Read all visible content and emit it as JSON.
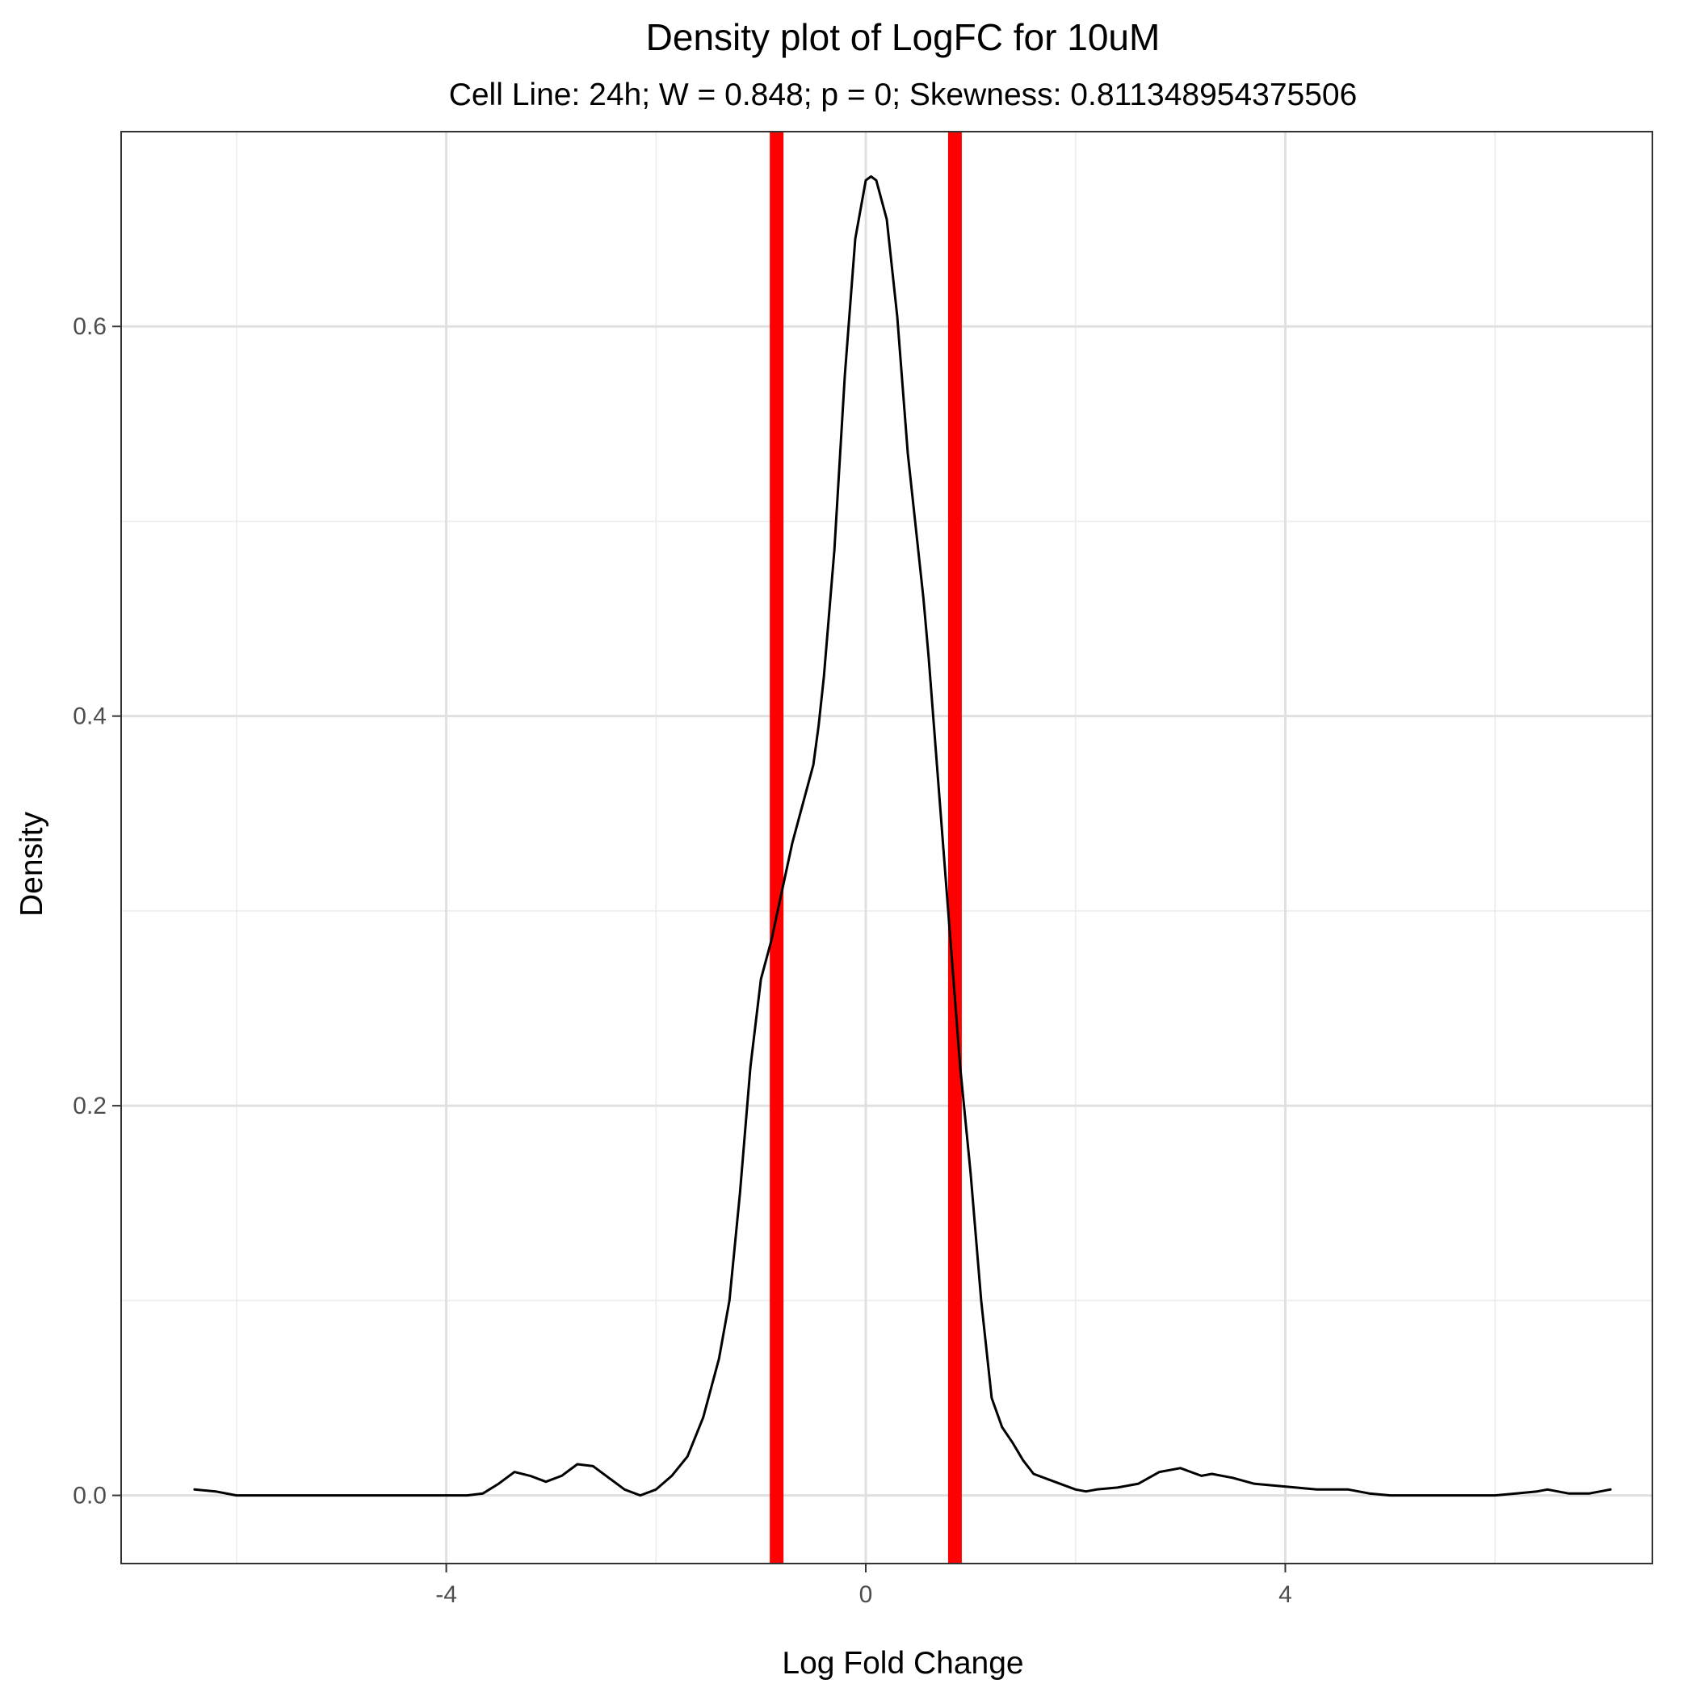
{
  "chart_data": {
    "type": "line",
    "title": "Density plot of LogFC for 10uM",
    "subtitle": "Cell Line: 24h; W = 0.848; p = 0; Skewness: 0.811348954375506",
    "xlabel": "Log Fold Change",
    "ylabel": "Density",
    "xlim": [
      -7.1,
      7.5
    ],
    "ylim": [
      -0.035,
      0.7
    ],
    "x_ticks": [
      -4,
      0,
      4
    ],
    "x_tick_labels": [
      "-4",
      "0",
      "4"
    ],
    "x_minor_ticks": [
      -6,
      -2,
      2,
      6
    ],
    "y_ticks": [
      0.0,
      0.2,
      0.4,
      0.6
    ],
    "y_tick_labels": [
      "0.0",
      "0.2",
      "0.4",
      "0.6"
    ],
    "y_minor_ticks": [
      0.1,
      0.3,
      0.5
    ],
    "grid": true,
    "line_color": "#000000",
    "vline_color": "#ff0000",
    "vlines": [
      -0.85,
      0.85
    ],
    "series": [
      {
        "x": [
          -6.4,
          -6.2,
          -6.0,
          -5.6,
          -5.0,
          -4.5,
          -4.0,
          -3.8,
          -3.65,
          -3.5,
          -3.35,
          -3.2,
          -3.05,
          -2.9,
          -2.75,
          -2.6,
          -2.45,
          -2.3,
          -2.15,
          -2.0,
          -1.85,
          -1.7,
          -1.55,
          -1.4,
          -1.3,
          -1.2,
          -1.1,
          -1.0,
          -0.9,
          -0.8,
          -0.7,
          -0.6,
          -0.5,
          -0.45,
          -0.4,
          -0.3,
          -0.2,
          -0.1,
          0.0,
          0.05,
          0.1,
          0.2,
          0.3,
          0.4,
          0.5,
          0.55,
          0.6,
          0.7,
          0.8,
          0.85,
          0.9,
          1.0,
          1.1,
          1.2,
          1.3,
          1.4,
          1.5,
          1.6,
          1.8,
          2.0,
          2.1,
          2.2,
          2.4,
          2.6,
          2.8,
          3.0,
          3.1,
          3.2,
          3.3,
          3.5,
          3.7,
          3.9,
          4.1,
          4.3,
          4.45,
          4.6,
          4.8,
          5.0,
          5.5,
          6.0,
          6.2,
          6.4,
          6.5,
          6.7,
          6.9,
          7.1
        ],
        "y": [
          0.003,
          0.002,
          0.0,
          0.0,
          0.0,
          0.0,
          0.0,
          0.0,
          0.001,
          0.006,
          0.012,
          0.01,
          0.007,
          0.01,
          0.016,
          0.015,
          0.009,
          0.003,
          0.0,
          0.003,
          0.01,
          0.02,
          0.04,
          0.07,
          0.1,
          0.155,
          0.22,
          0.265,
          0.285,
          0.31,
          0.335,
          0.355,
          0.375,
          0.395,
          0.42,
          0.485,
          0.575,
          0.645,
          0.675,
          0.677,
          0.675,
          0.655,
          0.605,
          0.535,
          0.485,
          0.46,
          0.43,
          0.36,
          0.29,
          0.255,
          0.22,
          0.165,
          0.1,
          0.05,
          0.035,
          0.027,
          0.018,
          0.011,
          0.007,
          0.003,
          0.002,
          0.003,
          0.004,
          0.006,
          0.012,
          0.014,
          0.012,
          0.01,
          0.011,
          0.009,
          0.006,
          0.005,
          0.004,
          0.003,
          0.003,
          0.003,
          0.001,
          0.0,
          0.0,
          0.0,
          0.001,
          0.002,
          0.003,
          0.001,
          0.001,
          0.003
        ]
      }
    ]
  }
}
